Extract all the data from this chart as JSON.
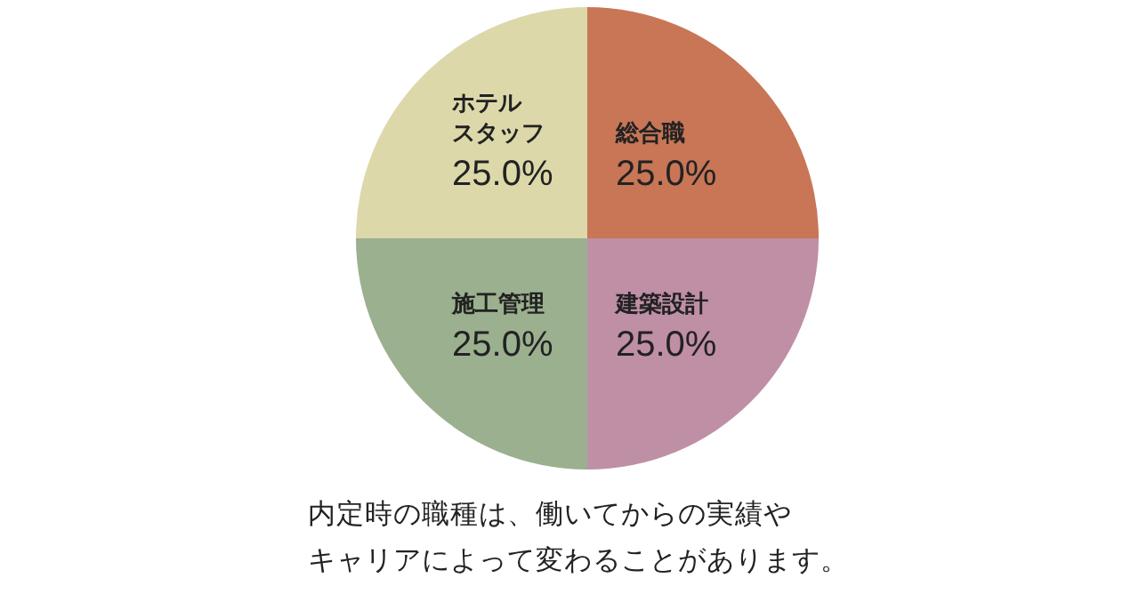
{
  "chart_data": {
    "type": "pie",
    "categories": [
      "総合職",
      "建築設計",
      "施工管理",
      "ホテルスタッフ"
    ],
    "values": [
      25,
      25,
      25,
      25
    ],
    "value_labels": [
      "25.0%",
      "25.0%",
      "25.0%",
      "25.0%"
    ],
    "colors": [
      "#c87656",
      "#bf8fa6",
      "#9bb08f",
      "#dcd8aa"
    ],
    "annotations": [
      "内定時の職種は、働いてからの実績や",
      "キャリアによって変わることがあります。"
    ]
  }
}
